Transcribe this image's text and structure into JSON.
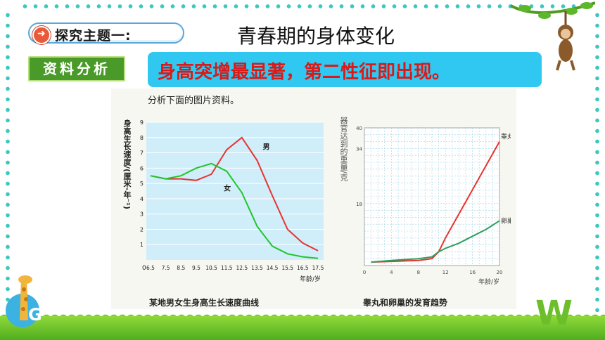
{
  "topic": {
    "icon": "arrow-right-icon",
    "label": "探究主题一:"
  },
  "page_title": "青春期的身体变化",
  "section_tag": "资料分析",
  "banner_text": "身高突增最显著，第二性征即出现。",
  "figure": {
    "note": "分析下面的图片资料。",
    "left_caption": "某地男女生身高生长速度曲线",
    "right_caption": "睾丸和卵巢的发育趋势"
  },
  "chart_data": [
    {
      "type": "line",
      "ylabel": "身高生长速度/(厘米·年⁻¹)",
      "xlabel": "年龄/岁",
      "x": [
        6.5,
        7.5,
        8.5,
        9.5,
        10.5,
        11.5,
        12.5,
        13.5,
        14.5,
        15.5,
        16.5,
        17.5
      ],
      "x_ticks": [
        "6.5",
        "7.5",
        "8.5",
        "9.5",
        "10.5",
        "11.5",
        "12.5",
        "13.5",
        "14.5",
        "15.5",
        "16.5",
        "17.5"
      ],
      "y_ticks": [
        "0",
        "1",
        "2",
        "3",
        "4",
        "5",
        "6",
        "7",
        "8",
        "9"
      ],
      "ylim": [
        0,
        9
      ],
      "x_origin_label": "0",
      "series": [
        {
          "name": "男",
          "color": "#e8332f",
          "values": [
            5.5,
            5.3,
            5.3,
            5.2,
            5.6,
            7.2,
            8.0,
            6.5,
            4.2,
            2.0,
            1.1,
            0.6
          ]
        },
        {
          "name": "女",
          "color": "#22c52a",
          "values": [
            5.5,
            5.3,
            5.5,
            6.0,
            6.3,
            5.8,
            4.4,
            2.2,
            0.9,
            0.4,
            0.2,
            0.1
          ]
        }
      ],
      "grid": true
    },
    {
      "type": "line",
      "ylabel": "器官达到的重量/克",
      "xlabel": "年龄/岁",
      "x_ticks": [
        "0",
        "4",
        "8",
        "12",
        "16",
        "20"
      ],
      "y_ticks": [
        "18",
        "34",
        "40"
      ],
      "xlim": [
        0,
        20
      ],
      "ylim": [
        0,
        40
      ],
      "series": [
        {
          "name": "睾丸",
          "color": "#e8332f",
          "x": [
            1,
            4,
            8,
            10,
            11,
            12,
            14,
            16,
            18,
            20
          ],
          "values": [
            1.0,
            1.2,
            1.5,
            2.0,
            4.0,
            8.0,
            15.0,
            22.0,
            29.0,
            36.0
          ]
        },
        {
          "name": "卵巢",
          "color": "#2e9e5c",
          "x": [
            1,
            4,
            8,
            10,
            11,
            12,
            14,
            16,
            18,
            20
          ],
          "values": [
            1.0,
            1.5,
            2.0,
            2.5,
            4.0,
            5.0,
            6.5,
            8.5,
            10.5,
            13.0
          ]
        }
      ],
      "grid": true
    }
  ]
}
